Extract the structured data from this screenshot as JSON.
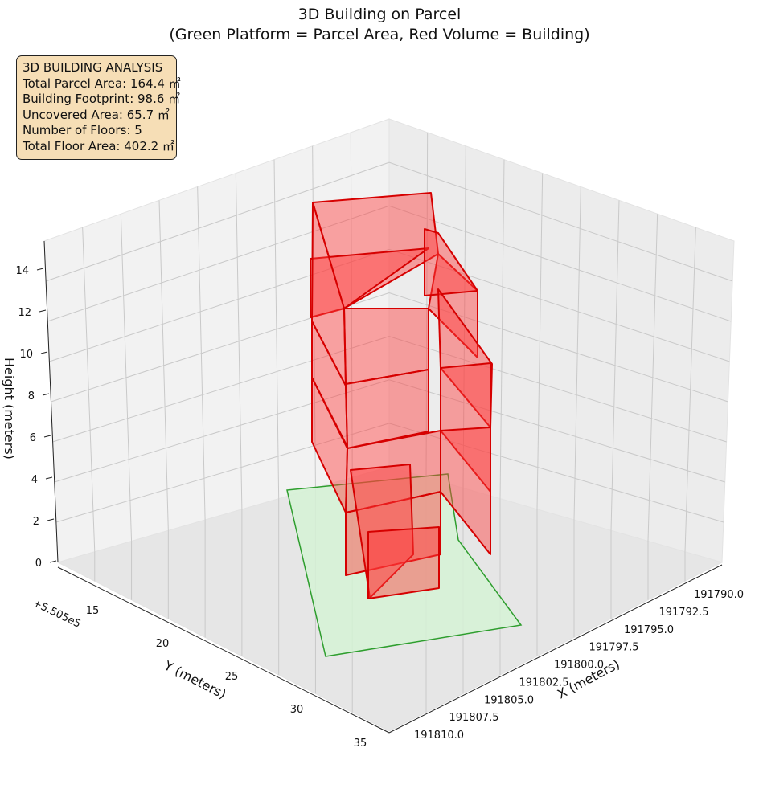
{
  "chart_data": {
    "type": "3d-polygons",
    "title": "3D Building on Parcel",
    "subtitle": "(Green Platform = Parcel Area, Red Volume = Building)",
    "xlabel": "X (meters)",
    "ylabel": "Y (meters)",
    "zlabel": "Height (meters)",
    "y_offset_label": "+5.505e5",
    "x_ticks": [
      "191790.0",
      "191792.5",
      "191795.0",
      "191797.5",
      "191800.0",
      "191802.5",
      "191805.0",
      "191807.5",
      "191810.0"
    ],
    "y_ticks": [
      "15",
      "20",
      "25",
      "30",
      "35"
    ],
    "z_ticks": [
      "0",
      "2",
      "4",
      "6",
      "8",
      "10",
      "12",
      "14"
    ],
    "colors": {
      "parcel_fill": "#d5f2d5",
      "parcel_edge": "#2e9e2e",
      "building_fill": "#ff3b3b",
      "building_edge": "#d60000",
      "box_bg": "#f6deb6"
    },
    "grid": true,
    "legend": "none",
    "analysis": {
      "heading": "3D BUILDING ANALYSIS",
      "lines": [
        "Total Parcel Area: 164.4 ㎡",
        "Building Footprint: 98.6 ㎡",
        "Uncovered Area: 65.7 ㎡",
        "Number of Floors: 5",
        "Total Floor Area: 402.2 ㎡"
      ]
    }
  }
}
